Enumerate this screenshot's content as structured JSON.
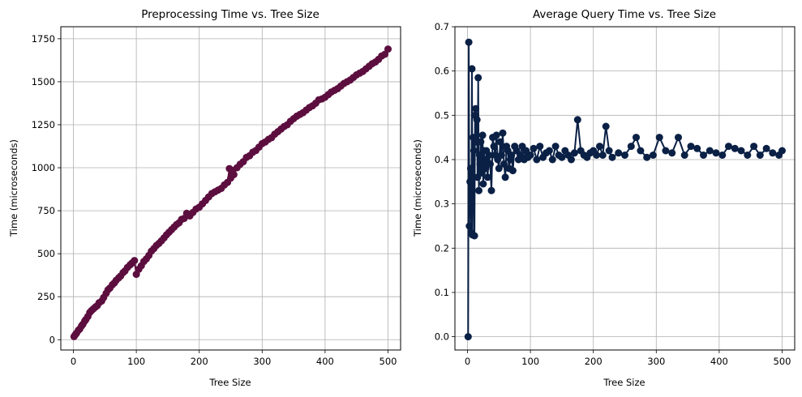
{
  "chart_data": [
    {
      "type": "line",
      "title": "Preprocessing Time vs. Tree Size",
      "xlabel": "Tree Size",
      "ylabel": "Time (microseconds)",
      "xlim": [
        -20,
        520
      ],
      "ylim": [
        -60,
        1820
      ],
      "xticks": [
        0,
        100,
        200,
        300,
        400,
        500
      ],
      "yticks": [
        0,
        250,
        500,
        750,
        1000,
        1250,
        1500,
        1750
      ],
      "grid": true,
      "marker": "circle",
      "color": "#5c0e3f",
      "x": [
        1,
        3,
        5,
        8,
        10,
        13,
        15,
        18,
        20,
        23,
        26,
        29,
        32,
        35,
        38,
        41,
        45,
        48,
        52,
        55,
        58,
        62,
        65,
        68,
        72,
        75,
        79,
        82,
        86,
        90,
        93,
        97,
        100,
        104,
        108,
        112,
        116,
        120,
        124,
        128,
        132,
        136,
        140,
        144,
        148,
        152,
        156,
        160,
        164,
        168,
        172,
        176,
        180,
        185,
        190,
        195,
        200,
        205,
        210,
        215,
        220,
        225,
        230,
        235,
        240,
        245,
        248,
        250,
        253,
        255,
        260,
        265,
        270,
        275,
        280,
        285,
        290,
        295,
        300,
        305,
        310,
        315,
        320,
        325,
        330,
        335,
        340,
        345,
        350,
        355,
        360,
        365,
        370,
        375,
        380,
        385,
        390,
        395,
        400,
        405,
        410,
        415,
        420,
        425,
        430,
        435,
        440,
        445,
        450,
        455,
        460,
        465,
        470,
        475,
        480,
        485,
        490,
        495,
        500
      ],
      "y": [
        18,
        28,
        38,
        55,
        62,
        80,
        90,
        108,
        118,
        135,
        158,
        170,
        180,
        190,
        198,
        215,
        225,
        245,
        270,
        290,
        300,
        320,
        330,
        345,
        360,
        370,
        390,
        400,
        420,
        435,
        445,
        460,
        380,
        410,
        430,
        455,
        470,
        490,
        515,
        530,
        548,
        560,
        575,
        592,
        610,
        625,
        640,
        655,
        670,
        680,
        700,
        705,
        735,
        720,
        740,
        760,
        770,
        790,
        810,
        830,
        850,
        860,
        870,
        880,
        900,
        915,
        995,
        940,
        985,
        960,
        1000,
        1020,
        1035,
        1060,
        1070,
        1090,
        1100,
        1120,
        1140,
        1150,
        1165,
        1175,
        1195,
        1210,
        1225,
        1240,
        1250,
        1270,
        1285,
        1300,
        1310,
        1320,
        1335,
        1350,
        1360,
        1375,
        1395,
        1400,
        1410,
        1425,
        1440,
        1450,
        1460,
        1475,
        1490,
        1500,
        1510,
        1525,
        1540,
        1550,
        1560,
        1575,
        1590,
        1605,
        1615,
        1630,
        1650,
        1660,
        1690
      ]
    },
    {
      "type": "line",
      "title": "Average Query Time vs. Tree Size",
      "xlabel": "Tree Size",
      "ylabel": "Time (microseconds)",
      "xlim": [
        -20,
        520
      ],
      "ylim": [
        -0.03,
        0.7
      ],
      "xticks": [
        0,
        100,
        200,
        300,
        400,
        500
      ],
      "yticks": [
        0.0,
        0.1,
        0.2,
        0.3,
        0.4,
        0.5,
        0.6,
        0.7
      ],
      "grid": true,
      "marker": "circle",
      "color": "#0a2045",
      "x": [
        1,
        2,
        3,
        4,
        5,
        6,
        7,
        8,
        9,
        10,
        11,
        12,
        13,
        14,
        15,
        16,
        17,
        18,
        19,
        20,
        21,
        22,
        23,
        24,
        25,
        26,
        27,
        28,
        29,
        30,
        32,
        34,
        36,
        38,
        40,
        42,
        44,
        46,
        48,
        50,
        52,
        54,
        56,
        58,
        60,
        62,
        64,
        66,
        68,
        70,
        72,
        75,
        78,
        81,
        84,
        87,
        90,
        93,
        96,
        100,
        105,
        110,
        115,
        120,
        125,
        130,
        135,
        140,
        145,
        150,
        155,
        160,
        165,
        170,
        175,
        180,
        185,
        190,
        195,
        200,
        205,
        210,
        215,
        220,
        225,
        230,
        240,
        250,
        260,
        268,
        275,
        285,
        295,
        305,
        315,
        325,
        335,
        345,
        355,
        365,
        375,
        385,
        395,
        405,
        415,
        425,
        435,
        445,
        455,
        465,
        475,
        485,
        495,
        500
      ],
      "y": [
        0.0,
        0.665,
        0.25,
        0.35,
        0.38,
        0.235,
        0.605,
        0.23,
        0.45,
        0.42,
        0.228,
        0.5,
        0.515,
        0.44,
        0.49,
        0.36,
        0.585,
        0.33,
        0.41,
        0.39,
        0.44,
        0.38,
        0.37,
        0.455,
        0.345,
        0.42,
        0.39,
        0.4,
        0.38,
        0.42,
        0.36,
        0.41,
        0.39,
        0.33,
        0.45,
        0.43,
        0.41,
        0.455,
        0.4,
        0.38,
        0.44,
        0.41,
        0.46,
        0.39,
        0.36,
        0.43,
        0.42,
        0.38,
        0.4,
        0.41,
        0.375,
        0.43,
        0.42,
        0.4,
        0.41,
        0.43,
        0.4,
        0.42,
        0.405,
        0.41,
        0.425,
        0.4,
        0.43,
        0.405,
        0.415,
        0.42,
        0.4,
        0.43,
        0.41,
        0.405,
        0.42,
        0.41,
        0.4,
        0.415,
        0.49,
        0.42,
        0.41,
        0.405,
        0.415,
        0.42,
        0.41,
        0.43,
        0.41,
        0.475,
        0.42,
        0.405,
        0.415,
        0.41,
        0.43,
        0.45,
        0.42,
        0.405,
        0.41,
        0.45,
        0.42,
        0.415,
        0.45,
        0.41,
        0.43,
        0.425,
        0.41,
        0.42,
        0.415,
        0.41,
        0.43,
        0.425,
        0.42,
        0.41,
        0.43,
        0.41,
        0.425,
        0.415,
        0.41,
        0.42
      ]
    }
  ]
}
